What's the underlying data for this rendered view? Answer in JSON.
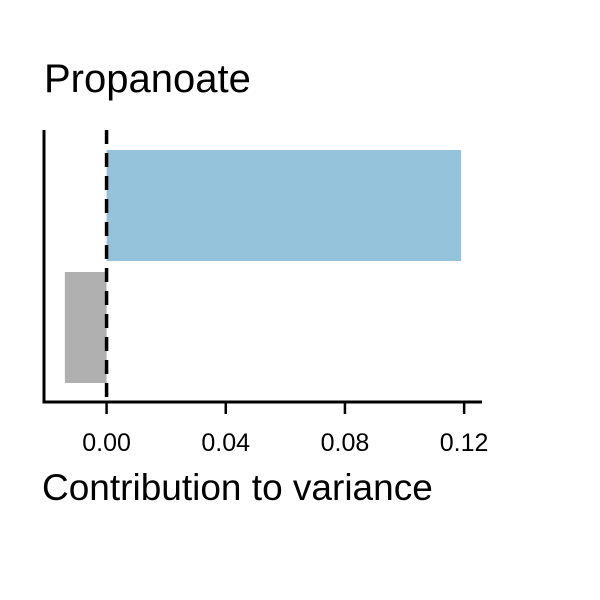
{
  "chart_data": {
    "type": "bar",
    "orientation": "horizontal",
    "title": "Propanoate",
    "xlabel": "Contribution to variance",
    "ylabel": "",
    "xlim": [
      -0.021,
      0.126
    ],
    "xticks": [
      0.0,
      0.04,
      0.08,
      0.12
    ],
    "xtick_labels": [
      "0.00",
      "0.04",
      "0.08",
      "0.12"
    ],
    "reference_line": {
      "x": 0.0,
      "style": "dashed"
    },
    "grid": false,
    "legend": "none",
    "bars": [
      {
        "value": 0.119,
        "color": "#96c3dc"
      },
      {
        "value": -0.014,
        "color": "#b0b0b0"
      }
    ]
  }
}
